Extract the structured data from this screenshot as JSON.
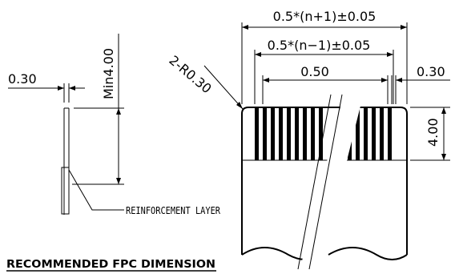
{
  "side_view": {
    "thickness_label": "0.30",
    "min_length_label": "Min4.00",
    "reinforcement_label": "REINFORCEMENT LAYER"
  },
  "top_view": {
    "overall_width_label": "0.5*(n+1)±0.05",
    "pitch_span_label": "0.5*(n−1)±0.05",
    "pitch_label": "0.50",
    "corner_radius_label": "2-R0.30",
    "finger_width_label": "0.30",
    "contact_length_label": "4.00"
  },
  "caption": "RECOMMENDED FPC DIMENSION"
}
